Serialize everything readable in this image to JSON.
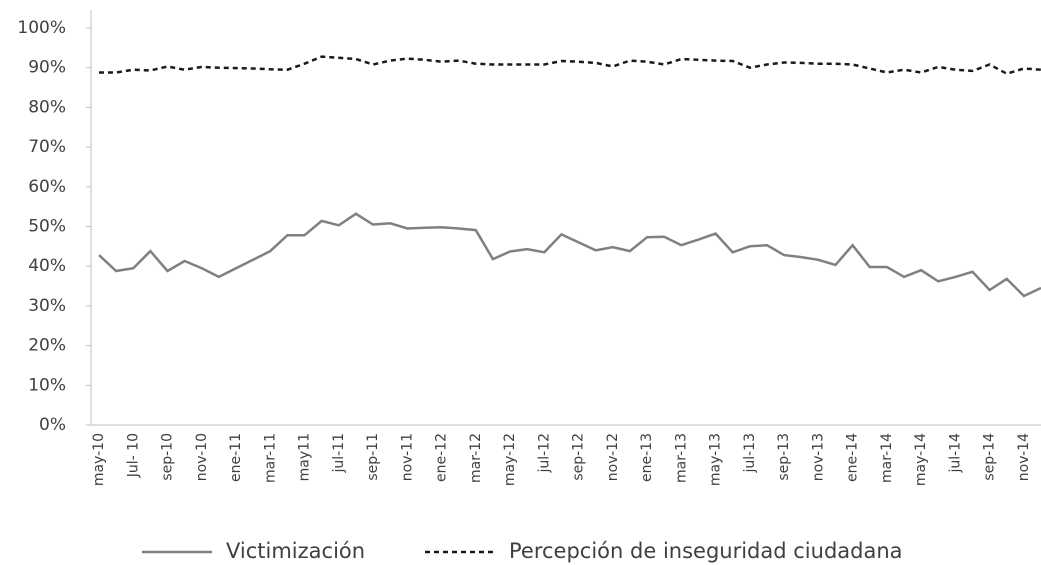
{
  "chart_data": {
    "type": "line",
    "categories": [
      "may-10",
      null,
      "Jul- 10",
      null,
      "sep-10",
      null,
      "nov-10",
      null,
      "ene-11",
      null,
      "mar-11",
      null,
      "may11",
      null,
      "jul-11",
      null,
      "sep-11",
      null,
      "nov-11",
      null,
      "ene-12",
      null,
      "mar-12",
      null,
      "may-12",
      null,
      "jul-12",
      null,
      "sep-12",
      null,
      "nov-12",
      null,
      "ene-13",
      null,
      "mar-13",
      null,
      "may-13",
      null,
      "jul-13",
      null,
      "sep-13",
      null,
      "nov-13",
      null,
      "ene-14",
      null,
      "mar-14",
      null,
      "may-14",
      null,
      "jul-14",
      null,
      "sep-14",
      null,
      "nov-14",
      null
    ],
    "series": [
      {
        "name": "Victimización",
        "color": "#808080",
        "dash": "none",
        "values": [
          42.8,
          38.8,
          39.5,
          43.8,
          38.8,
          41.3,
          39.5,
          37.3,
          39.5,
          41.6,
          43.8,
          47.8,
          47.8,
          51.4,
          50.3,
          53.2,
          50.5,
          50.8,
          49.5,
          49.7,
          49.8,
          49.5,
          49.1,
          41.8,
          43.7,
          44.3,
          43.5,
          48.0,
          46.0,
          44.0,
          44.8,
          43.8,
          47.3,
          47.4,
          45.3,
          46.7,
          48.2,
          43.5,
          45.0,
          45.3,
          42.8,
          42.3,
          41.6,
          40.3,
          45.3,
          39.8,
          39.8,
          37.3,
          39.0,
          36.2,
          37.3,
          38.6,
          34.0,
          36.8,
          32.5,
          34.5
        ]
      },
      {
        "name": "Percepción de inseguridad ciudadana",
        "color": "#1a1a1a",
        "dash": "5,4",
        "values": [
          88.8,
          88.8,
          89.5,
          89.3,
          90.3,
          89.5,
          90.2,
          90.0,
          89.9,
          89.8,
          89.6,
          89.5,
          91.0,
          92.8,
          92.5,
          92.2,
          90.8,
          91.8,
          92.3,
          92.0,
          91.5,
          91.8,
          91.0,
          90.8,
          90.8,
          90.8,
          90.8,
          91.7,
          91.5,
          91.2,
          90.3,
          91.8,
          91.5,
          90.8,
          92.2,
          92.0,
          91.8,
          91.7,
          90.0,
          90.8,
          91.3,
          91.2,
          91.0,
          91.0,
          90.8,
          89.8,
          88.8,
          89.5,
          88.8,
          90.2,
          89.5,
          89.2,
          90.8,
          88.5,
          89.8,
          89.5
        ]
      }
    ],
    "ylim": [
      0,
      100
    ],
    "yticks": [
      {
        "value": 0,
        "label": "0%"
      },
      {
        "value": 10,
        "label": "10%"
      },
      {
        "value": 20,
        "label": "20%"
      },
      {
        "value": 30,
        "label": "30%"
      },
      {
        "value": 40,
        "label": "40%"
      },
      {
        "value": 50,
        "label": "50%"
      },
      {
        "value": 60,
        "label": "60%"
      },
      {
        "value": 70,
        "label": "70%"
      },
      {
        "value": 80,
        "label": "80%"
      },
      {
        "value": 90,
        "label": "90%"
      },
      {
        "value": 100,
        "label": "100%"
      }
    ],
    "grid": false,
    "legend": "bottom"
  }
}
